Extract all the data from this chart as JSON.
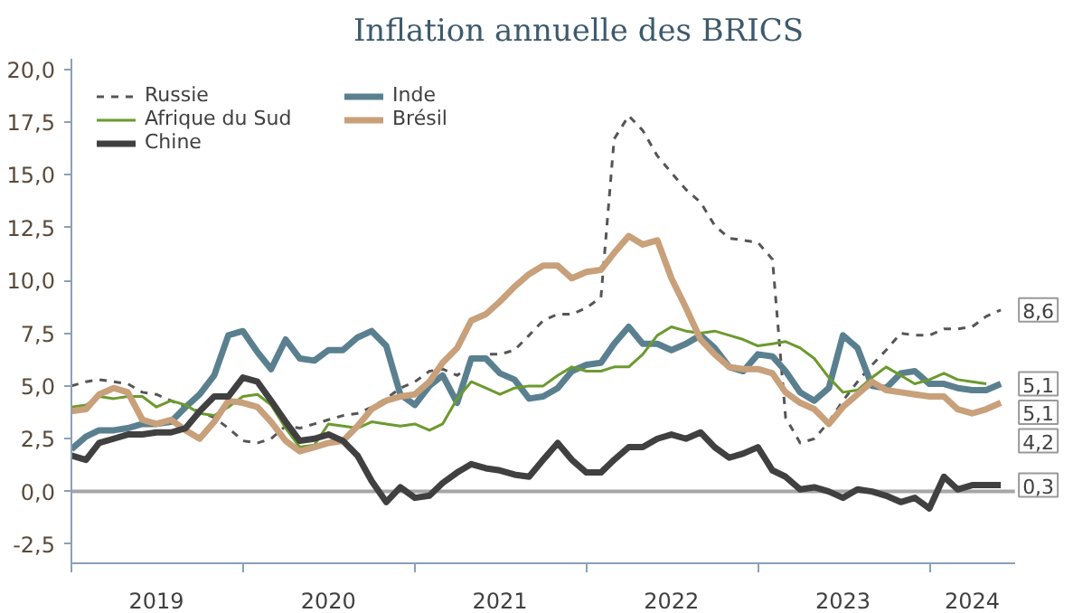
{
  "chart_data": {
    "type": "line",
    "title": "Inflation annuelle des BRICS",
    "x": [
      "2019-01",
      "2019-02",
      "2019-03",
      "2019-04",
      "2019-05",
      "2019-06",
      "2019-07",
      "2019-08",
      "2019-09",
      "2019-10",
      "2019-11",
      "2019-12",
      "2020-01",
      "2020-02",
      "2020-03",
      "2020-04",
      "2020-05",
      "2020-06",
      "2020-07",
      "2020-08",
      "2020-09",
      "2020-10",
      "2020-11",
      "2020-12",
      "2021-01",
      "2021-02",
      "2021-03",
      "2021-04",
      "2021-05",
      "2021-06",
      "2021-07",
      "2021-08",
      "2021-09",
      "2021-10",
      "2021-11",
      "2021-12",
      "2022-01",
      "2022-02",
      "2022-03",
      "2022-04",
      "2022-05",
      "2022-06",
      "2022-07",
      "2022-08",
      "2022-09",
      "2022-10",
      "2022-11",
      "2022-12",
      "2023-01",
      "2023-02",
      "2023-03",
      "2023-04",
      "2023-05",
      "2023-06",
      "2023-07",
      "2023-08",
      "2023-09",
      "2023-10",
      "2023-11",
      "2023-12",
      "2024-01",
      "2024-02",
      "2024-03",
      "2024-04",
      "2024-05",
      "2024-06"
    ],
    "series": [
      {
        "name": "Russie",
        "color": "#555555",
        "line_style": "dashed",
        "values": [
          5.0,
          5.2,
          5.3,
          5.2,
          5.1,
          4.7,
          4.6,
          4.3,
          4.0,
          3.8,
          3.5,
          3.0,
          2.4,
          2.3,
          2.5,
          3.1,
          3.0,
          3.2,
          3.4,
          3.6,
          3.7,
          4.0,
          4.4,
          4.9,
          5.2,
          5.7,
          5.8,
          5.5,
          6.0,
          6.5,
          6.5,
          6.7,
          7.4,
          8.1,
          8.4,
          8.4,
          8.7,
          9.2,
          16.7,
          17.8,
          17.1,
          15.9,
          15.1,
          14.3,
          13.7,
          12.6,
          12.0,
          11.9,
          11.8,
          11.0,
          3.5,
          2.3,
          2.5,
          3.3,
          4.3,
          5.2,
          6.0,
          6.7,
          7.5,
          7.4,
          7.4,
          7.7,
          7.7,
          7.8,
          8.3,
          8.6
        ],
        "value_labels": [
          null,
          null,
          null,
          null,
          null,
          null,
          null,
          null,
          null,
          null,
          null,
          null,
          null,
          null,
          null,
          null,
          null,
          null,
          null,
          null,
          null,
          null,
          null,
          null,
          null,
          null,
          null,
          null,
          null,
          null,
          null,
          null,
          null,
          null,
          null,
          null,
          null,
          null,
          null,
          null,
          null,
          null,
          null,
          null,
          null,
          null,
          null,
          null,
          null,
          null,
          null,
          null,
          null,
          null,
          null,
          null,
          null,
          null,
          null,
          null,
          null,
          null,
          null,
          null,
          null,
          "8,6"
        ]
      },
      {
        "name": "Inde",
        "color": "#5a8090",
        "values": [
          2.0,
          2.6,
          2.9,
          2.9,
          3.0,
          3.2,
          3.2,
          3.3,
          4.0,
          4.6,
          5.5,
          7.4,
          7.6,
          6.6,
          5.8,
          7.2,
          6.3,
          6.2,
          6.7,
          6.7,
          7.3,
          7.6,
          6.9,
          4.6,
          4.1,
          5.0,
          5.5,
          4.2,
          6.3,
          6.3,
          5.6,
          5.3,
          4.4,
          4.5,
          4.9,
          5.7,
          6.0,
          6.1,
          7.0,
          7.8,
          7.0,
          7.0,
          6.7,
          7.0,
          7.4,
          6.8,
          5.9,
          5.7,
          6.5,
          6.4,
          5.7,
          4.7,
          4.3,
          4.9,
          7.4,
          6.8,
          5.0,
          4.9,
          5.6,
          5.7,
          5.1,
          5.1,
          4.9,
          4.8,
          4.8,
          5.1
        ],
        "value_labels": [
          null,
          null,
          null,
          null,
          null,
          null,
          null,
          null,
          null,
          null,
          null,
          null,
          null,
          null,
          null,
          null,
          null,
          null,
          null,
          null,
          null,
          null,
          null,
          null,
          null,
          null,
          null,
          null,
          null,
          null,
          null,
          null,
          null,
          null,
          null,
          null,
          null,
          null,
          null,
          null,
          null,
          null,
          null,
          null,
          null,
          null,
          null,
          null,
          null,
          null,
          null,
          null,
          null,
          null,
          null,
          null,
          null,
          null,
          null,
          null,
          null,
          null,
          null,
          null,
          null,
          "5,1"
        ]
      },
      {
        "name": "Afrique du Sud",
        "color": "#6b9a2e",
        "values": [
          4.0,
          4.1,
          4.5,
          4.4,
          4.5,
          4.5,
          4.0,
          4.3,
          4.1,
          3.7,
          3.6,
          4.0,
          4.5,
          4.6,
          4.1,
          3.0,
          2.1,
          2.2,
          3.2,
          3.1,
          3.0,
          3.3,
          3.2,
          3.1,
          3.2,
          2.9,
          3.2,
          4.4,
          5.2,
          4.9,
          4.6,
          4.9,
          5.0,
          5.0,
          5.5,
          5.9,
          5.7,
          5.7,
          5.9,
          5.9,
          6.5,
          7.4,
          7.8,
          7.6,
          7.5,
          7.6,
          7.4,
          7.2,
          6.9,
          7.0,
          7.1,
          6.8,
          6.3,
          5.4,
          4.7,
          4.8,
          5.4,
          5.9,
          5.5,
          5.1,
          5.3,
          5.6,
          5.3,
          5.2,
          5.1,
          null
        ],
        "value_labels": [
          null,
          null,
          null,
          null,
          null,
          null,
          null,
          null,
          null,
          null,
          null,
          null,
          null,
          null,
          null,
          null,
          null,
          null,
          null,
          null,
          null,
          null,
          null,
          null,
          null,
          null,
          null,
          null,
          null,
          null,
          null,
          null,
          null,
          null,
          null,
          null,
          null,
          null,
          null,
          null,
          null,
          null,
          null,
          null,
          null,
          null,
          null,
          null,
          null,
          null,
          null,
          null,
          null,
          null,
          null,
          null,
          null,
          null,
          null,
          null,
          null,
          null,
          null,
          null,
          "5,1",
          null
        ]
      },
      {
        "name": "Brésil",
        "color": "#c8a07a",
        "values": [
          3.8,
          3.9,
          4.6,
          4.9,
          4.7,
          3.4,
          3.2,
          3.4,
          2.9,
          2.5,
          3.3,
          4.3,
          4.2,
          4.0,
          3.3,
          2.4,
          1.9,
          2.1,
          2.3,
          2.4,
          3.1,
          3.9,
          4.3,
          4.5,
          4.6,
          5.2,
          6.1,
          6.8,
          8.1,
          8.4,
          9.0,
          9.7,
          10.3,
          10.7,
          10.7,
          10.1,
          10.4,
          10.5,
          11.3,
          12.1,
          11.7,
          11.9,
          10.1,
          8.7,
          7.2,
          6.5,
          5.9,
          5.8,
          5.8,
          5.6,
          4.7,
          4.2,
          3.9,
          3.2,
          4.0,
          4.6,
          5.2,
          4.8,
          4.7,
          4.6,
          4.5,
          4.5,
          3.9,
          3.7,
          3.9,
          4.2
        ],
        "value_labels": [
          null,
          null,
          null,
          null,
          null,
          null,
          null,
          null,
          null,
          null,
          null,
          null,
          null,
          null,
          null,
          null,
          null,
          null,
          null,
          null,
          null,
          null,
          null,
          null,
          null,
          null,
          null,
          null,
          null,
          null,
          null,
          null,
          null,
          null,
          null,
          null,
          null,
          null,
          null,
          null,
          null,
          null,
          null,
          null,
          null,
          null,
          null,
          null,
          null,
          null,
          null,
          null,
          null,
          null,
          null,
          null,
          null,
          null,
          null,
          null,
          null,
          null,
          null,
          null,
          null,
          "4,2"
        ]
      },
      {
        "name": "Chine",
        "color": "#404040",
        "values": [
          1.7,
          1.5,
          2.3,
          2.5,
          2.7,
          2.7,
          2.8,
          2.8,
          3.0,
          3.8,
          4.5,
          4.5,
          5.4,
          5.2,
          4.3,
          3.3,
          2.4,
          2.5,
          2.7,
          2.4,
          1.7,
          0.5,
          -0.5,
          0.2,
          -0.3,
          -0.2,
          0.4,
          0.9,
          1.3,
          1.1,
          1.0,
          0.8,
          0.7,
          1.5,
          2.3,
          1.5,
          0.9,
          0.9,
          1.5,
          2.1,
          2.1,
          2.5,
          2.7,
          2.5,
          2.8,
          2.1,
          1.6,
          1.8,
          2.1,
          1.0,
          0.7,
          0.1,
          0.2,
          0.0,
          -0.3,
          0.1,
          0.0,
          -0.2,
          -0.5,
          -0.3,
          -0.8,
          0.7,
          0.1,
          0.3,
          0.3,
          0.3
        ],
        "value_labels": [
          null,
          null,
          null,
          null,
          null,
          null,
          null,
          null,
          null,
          null,
          null,
          null,
          null,
          null,
          null,
          null,
          null,
          null,
          null,
          null,
          null,
          null,
          null,
          null,
          null,
          null,
          null,
          null,
          null,
          null,
          null,
          null,
          null,
          null,
          null,
          null,
          null,
          null,
          null,
          null,
          null,
          null,
          null,
          null,
          null,
          null,
          null,
          null,
          null,
          null,
          null,
          null,
          null,
          null,
          null,
          null,
          null,
          null,
          null,
          null,
          null,
          null,
          null,
          null,
          null,
          "0,3"
        ]
      }
    ],
    "xlim": [
      "2019-01",
      "2024-07"
    ],
    "xticks": [
      {
        "value": "2019-01",
        "label": null
      },
      {
        "value": "2020-01",
        "label": null
      },
      {
        "value": "2021-01",
        "label": null
      },
      {
        "value": "2022-01",
        "label": null
      },
      {
        "value": "2023-01",
        "label": null
      },
      {
        "value": "2024-01",
        "label": null
      },
      {
        "value": "2019-07",
        "label": "2019"
      },
      {
        "value": "2020-07",
        "label": "2020"
      },
      {
        "value": "2021-07",
        "label": "2021"
      },
      {
        "value": "2022-07",
        "label": "2022"
      },
      {
        "value": "2023-07",
        "label": "2023"
      },
      {
        "value": "2024-04",
        "label": "2024"
      }
    ],
    "ylim": [
      -3.4,
      20.5
    ],
    "yticks": [
      {
        "value": -2.5,
        "label": "-2,5"
      },
      {
        "value": 0,
        "label": "0,0"
      },
      {
        "value": 2.5,
        "label": "2,5"
      },
      {
        "value": 5,
        "label": "5,0"
      },
      {
        "value": 7.5,
        "label": "7,5"
      },
      {
        "value": 10,
        "label": "10,0"
      },
      {
        "value": 12.5,
        "label": "12,5"
      },
      {
        "value": 15,
        "label": "15,0"
      },
      {
        "value": 17.5,
        "label": "17,5"
      },
      {
        "value": 20,
        "label": "20,0"
      }
    ],
    "ref_lines": [
      {
        "axis": "y",
        "value": 0,
        "color": "#a6a6a6"
      }
    ],
    "grid": false,
    "legend": "top left"
  }
}
